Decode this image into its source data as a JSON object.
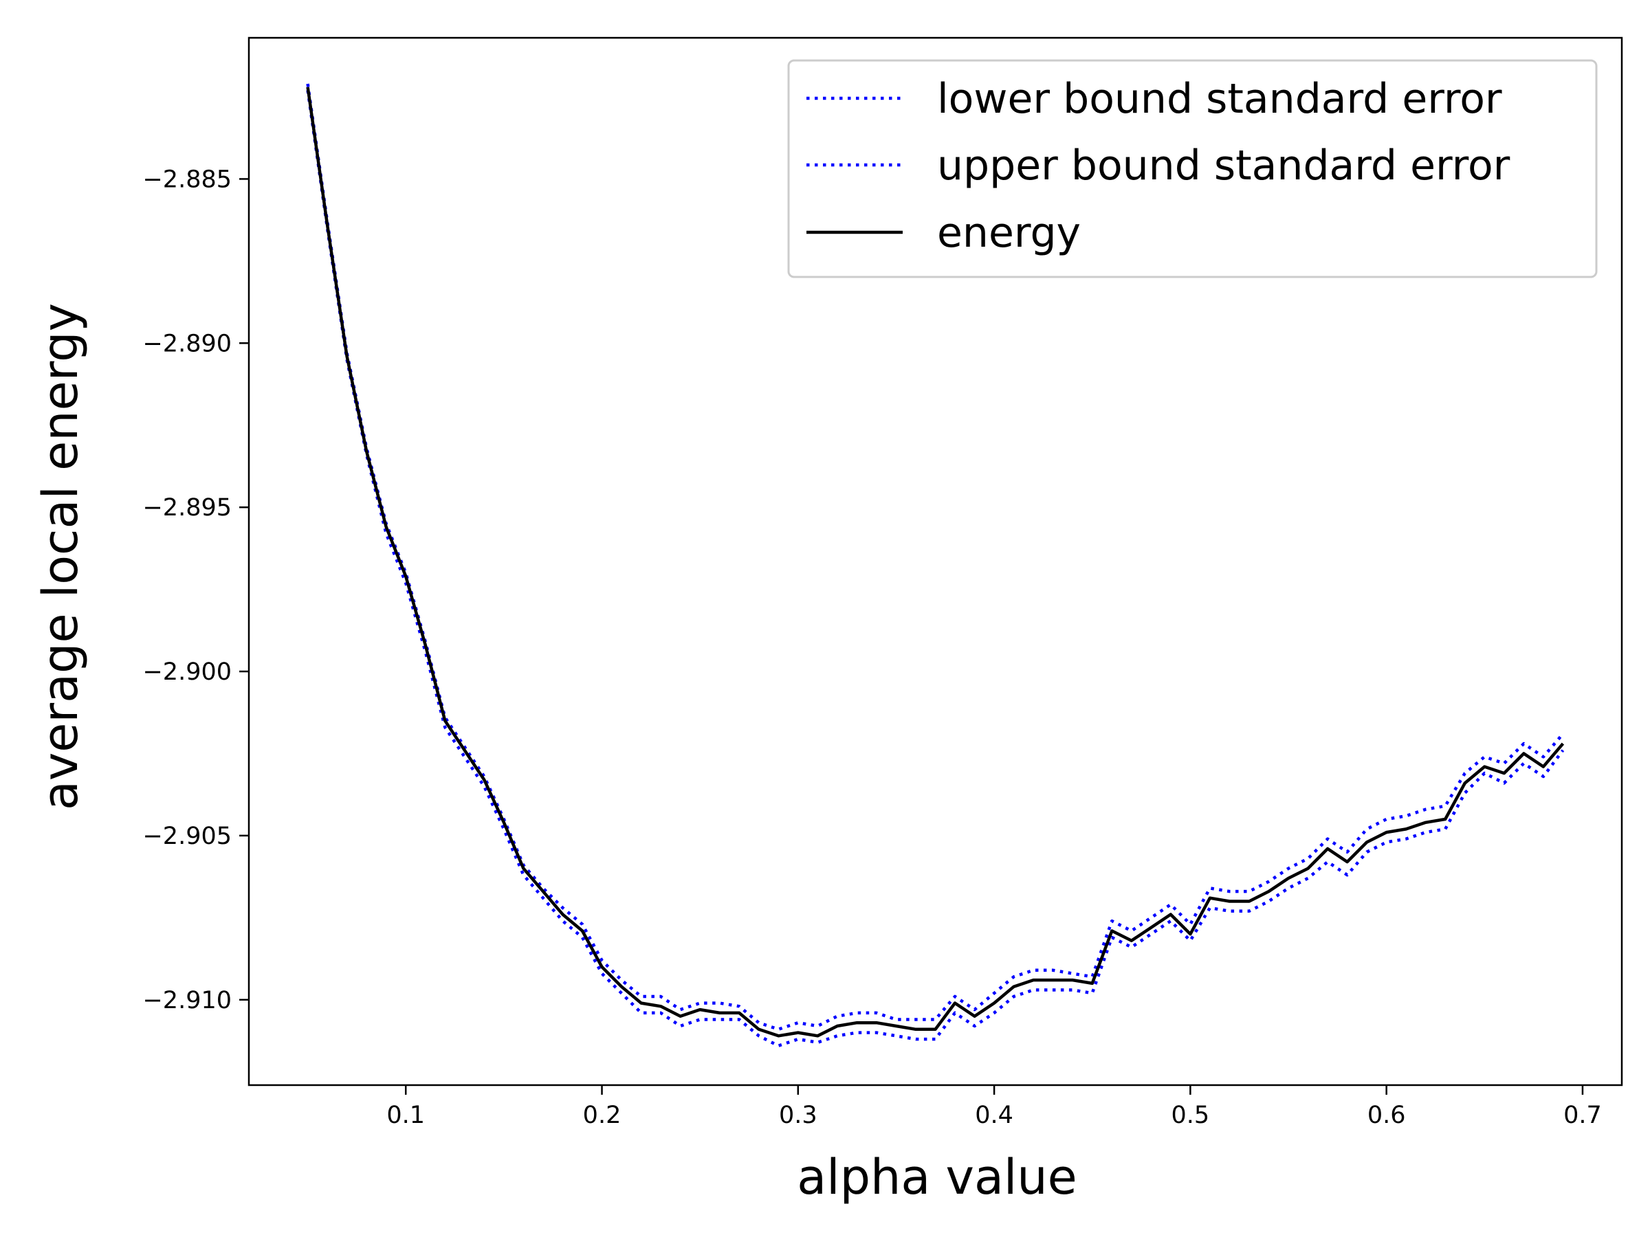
{
  "chart_data": {
    "type": "line",
    "title": "",
    "xlabel": "alpha value",
    "ylabel": "average local energy",
    "xlim": [
      0.02,
      0.72
    ],
    "ylim": [
      -2.9126,
      -2.8807
    ],
    "xticks": [
      0.1,
      0.2,
      0.3,
      0.4,
      0.5,
      0.6,
      0.7
    ],
    "xtick_labels": [
      "0.1",
      "0.2",
      "0.3",
      "0.4",
      "0.5",
      "0.6",
      "0.7"
    ],
    "yticks": [
      -2.885,
      -2.89,
      -2.895,
      -2.9,
      -2.905,
      -2.91
    ],
    "ytick_labels": [
      "−2.885",
      "−2.890",
      "−2.895",
      "−2.900",
      "−2.905",
      "−2.910"
    ],
    "grid": false,
    "legend_position": "top-right",
    "x": [
      0.05,
      0.06,
      0.07,
      0.08,
      0.09,
      0.1,
      0.11,
      0.12,
      0.13,
      0.14,
      0.15,
      0.16,
      0.17,
      0.18,
      0.19,
      0.2,
      0.21,
      0.22,
      0.23,
      0.24,
      0.25,
      0.26,
      0.27,
      0.28,
      0.29,
      0.3,
      0.31,
      0.32,
      0.33,
      0.34,
      0.35,
      0.36,
      0.37,
      0.38,
      0.39,
      0.4,
      0.41,
      0.42,
      0.43,
      0.44,
      0.45,
      0.46,
      0.47,
      0.48,
      0.49,
      0.5,
      0.51,
      0.52,
      0.53,
      0.54,
      0.55,
      0.56,
      0.57,
      0.58,
      0.59,
      0.6,
      0.61,
      0.62,
      0.63,
      0.64,
      0.65,
      0.66,
      0.67,
      0.68,
      0.69
    ],
    "series": [
      {
        "name": "lower bound standard error",
        "color": "#0000ff",
        "dash": "dotted",
        "values": [
          -2.8823,
          -2.8865,
          -2.8905,
          -2.8934,
          -2.8958,
          -2.8973,
          -2.8994,
          -2.9017,
          -2.9026,
          -2.9035,
          -2.9048,
          -2.9062,
          -2.9069,
          -2.9076,
          -2.9081,
          -2.9092,
          -2.9098,
          -2.9104,
          -2.9104,
          -2.9108,
          -2.9106,
          -2.9106,
          -2.9106,
          -2.9111,
          -2.9114,
          -2.9112,
          -2.9113,
          -2.9111,
          -2.911,
          -2.911,
          -2.9111,
          -2.9112,
          -2.9112,
          -2.9104,
          -2.9108,
          -2.9104,
          -2.9099,
          -2.9097,
          -2.9097,
          -2.9097,
          -2.9098,
          -2.9081,
          -2.9084,
          -2.908,
          -2.9076,
          -2.9082,
          -2.9072,
          -2.9073,
          -2.9073,
          -2.907,
          -2.9066,
          -2.9063,
          -2.9058,
          -2.9062,
          -2.9055,
          -2.9052,
          -2.9051,
          -2.9049,
          -2.9048,
          -2.9037,
          -2.9031,
          -2.9034,
          -2.9028,
          -2.9032,
          -2.9024
        ]
      },
      {
        "name": "upper bound standard error",
        "color": "#0000ff",
        "dash": "dotted",
        "values": [
          -2.8821,
          -2.8863,
          -2.8903,
          -2.8932,
          -2.8955,
          -2.897,
          -2.8991,
          -2.9014,
          -2.9023,
          -2.9032,
          -2.9045,
          -2.9059,
          -2.9066,
          -2.9072,
          -2.9077,
          -2.9088,
          -2.9094,
          -2.9099,
          -2.9099,
          -2.9103,
          -2.9101,
          -2.9101,
          -2.9102,
          -2.9107,
          -2.9109,
          -2.9107,
          -2.9108,
          -2.9105,
          -2.9104,
          -2.9104,
          -2.9106,
          -2.9106,
          -2.9106,
          -2.9099,
          -2.9103,
          -2.9098,
          -2.9093,
          -2.9091,
          -2.9091,
          -2.9092,
          -2.9093,
          -2.9076,
          -2.9079,
          -2.9075,
          -2.9071,
          -2.9077,
          -2.9066,
          -2.9067,
          -2.9067,
          -2.9064,
          -2.906,
          -2.9057,
          -2.9051,
          -2.9055,
          -2.9048,
          -2.9045,
          -2.9044,
          -2.9042,
          -2.9041,
          -2.9031,
          -2.9026,
          -2.9028,
          -2.9022,
          -2.9026,
          -2.9019
        ]
      },
      {
        "name": "energy",
        "color": "#000000",
        "dash": "solid",
        "values": [
          -2.8822,
          -2.8864,
          -2.8904,
          -2.8933,
          -2.8956,
          -2.8971,
          -2.8992,
          -2.9015,
          -2.9024,
          -2.9033,
          -2.9046,
          -2.906,
          -2.9067,
          -2.9074,
          -2.9079,
          -2.909,
          -2.9096,
          -2.9101,
          -2.9102,
          -2.9105,
          -2.9103,
          -2.9104,
          -2.9104,
          -2.9109,
          -2.9111,
          -2.911,
          -2.9111,
          -2.9108,
          -2.9107,
          -2.9107,
          -2.9108,
          -2.9109,
          -2.9109,
          -2.9101,
          -2.9105,
          -2.9101,
          -2.9096,
          -2.9094,
          -2.9094,
          -2.9094,
          -2.9095,
          -2.9079,
          -2.9082,
          -2.9078,
          -2.9074,
          -2.908,
          -2.9069,
          -2.907,
          -2.907,
          -2.9067,
          -2.9063,
          -2.906,
          -2.9054,
          -2.9058,
          -2.9052,
          -2.9049,
          -2.9048,
          -2.9046,
          -2.9045,
          -2.9034,
          -2.9029,
          -2.9031,
          -2.9025,
          -2.9029,
          -2.9022
        ]
      }
    ]
  }
}
